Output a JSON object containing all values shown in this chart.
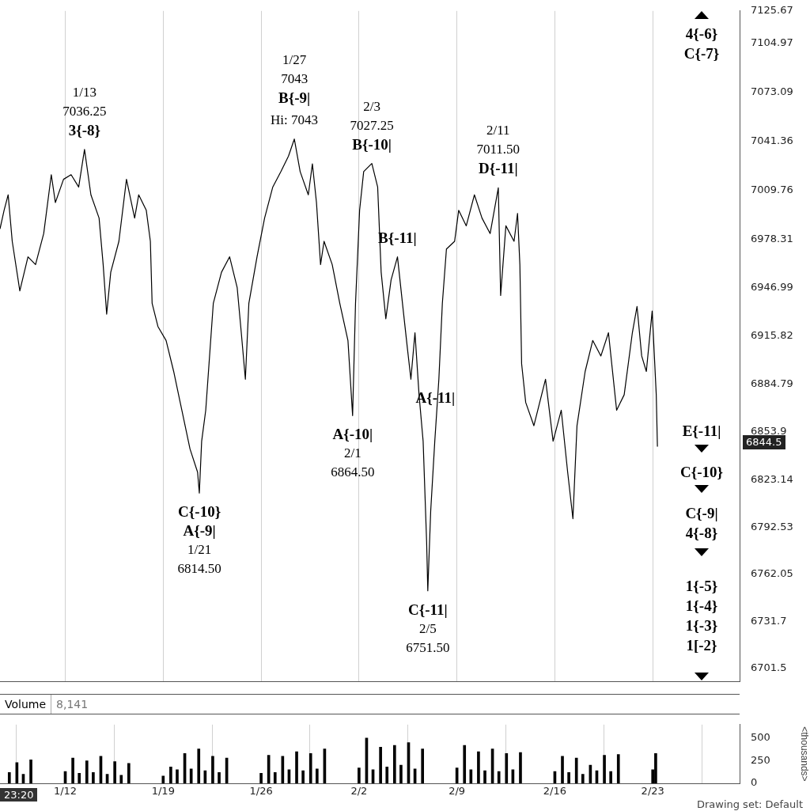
{
  "chart_data": [
    {
      "type": "line",
      "x": [
        "--01-07T08:00",
        "--01-07T15:00",
        "--01-07T22:00",
        "--01-08T05:00",
        "--01-08T18:00",
        "--01-09T08:00",
        "--01-09T21:00",
        "--01-10T11:00",
        "--01-11T00:00",
        "--01-11T07:00",
        "--01-11T21:00",
        "--01-12T10:00",
        "--01-12T23:00",
        "--01-13T09:00",
        "--01-13T20:00",
        "--01-14T10:00",
        "--01-14T17:00",
        "--01-14T23:00",
        "--01-15T06:00",
        "--01-15T20:00",
        "--01-16T09:00",
        "--01-16T23:00",
        "--01-17T06:00",
        "--01-17T19:00",
        "--01-18T02:00",
        "--01-18T05:00",
        "--01-18T15:00",
        "--01-19T05:00",
        "--01-19T18:00",
        "--01-20T08:00",
        "--01-20T22:00",
        "--01-21T11:00",
        "--01-21T14:00",
        "--01-21T18:00",
        "--01-22T01:00",
        "--01-22T14:00",
        "--01-23T04:00",
        "--01-23T18:00",
        "--01-24T07:00",
        "--01-24T14:00",
        "--01-24T21:00",
        "--01-25T03:00",
        "--01-25T17:00",
        "--01-26T06:00",
        "--01-26T20:00",
        "--01-27T10:00",
        "--01-27T23:00",
        "--01-28T09:00",
        "--01-28T19:00",
        "--01-29T09:00",
        "--01-29T16:00",
        "--01-29T23:00",
        "--01-30T06:00",
        "--01-30T12:00",
        "--01-31T02:00",
        "--01-31T15:00",
        "--02-01T05:00",
        "--02-01T13:00",
        "--02-01T18:00",
        "--02-02T01:00",
        "--02-02T08:00",
        "--02-02T22:00",
        "--02-03T08:00",
        "--02-03T14:00",
        "--02-03T22:00",
        "--02-04T07:00",
        "--02-04T18:00",
        "--02-05T04:00",
        "--02-05T11:00",
        "--02-05T17:00",
        "--02-06T00:00",
        "--02-06T07:00",
        "--02-06T14:00",
        "--02-06T20:00",
        "--02-06T22:00",
        "--02-07T03:00",
        "--02-07T10:00",
        "--02-07T17:00",
        "--02-07T23:00",
        "--02-08T06:00",
        "--02-08T20:00",
        "--02-09T03:00",
        "--02-09T16:00",
        "--02-10T06:00",
        "--02-10T19:00",
        "--02-11T09:00",
        "--02-11T23:00",
        "--02-12T03:00",
        "--02-12T12:00",
        "--02-13T02:00",
        "--02-13T08:00",
        "--02-13T12:00",
        "--02-13T15:00",
        "--02-13T22:00",
        "--02-14T12:00",
        "--02-15T08:00",
        "--02-15T21:00",
        "--02-16T11:00",
        "--02-16T22:00",
        "--02-17T07:00",
        "--02-17T14:00",
        "--02-18T04:00",
        "--02-18T17:00",
        "--02-19T07:00",
        "--02-19T20:00",
        "--02-20T10:00",
        "--02-20T23:00",
        "--02-21T13:00",
        "--02-21T21:00",
        "--02-22T05:00",
        "--02-22T13:00",
        "--02-22T23:00",
        "--02-23T06:00",
        "--02-23T08:00"
      ],
      "series": [
        {
          "color": "#000000",
          "values": [
            6985,
            6997,
            7007,
            6977,
            6945,
            6967,
            6962,
            6982,
            7020,
            7002,
            7017,
            7020,
            7012,
            7036.25,
            7007,
            6992,
            6962,
            6930,
            6957,
            6977,
            7017,
            6992,
            7007,
            6997,
            6977,
            6937,
            6922,
            6913,
            6893,
            6868,
            6843,
            6828,
            6814.5,
            6848,
            6868,
            6937,
            6957,
            6967,
            6947,
            6918,
            6888,
            6937,
            6967,
            6992,
            7012,
            7022,
            7032,
            7043,
            7022,
            7007,
            7027,
            7002,
            6962,
            6977,
            6962,
            6937,
            6913,
            6864.5,
            6937,
            6997,
            7022,
            7027.25,
            7012,
            6957,
            6927,
            6952,
            6967,
            6932,
            6908,
            6888,
            6918,
            6878,
            6848,
            6783,
            6751.5,
            6803,
            6848,
            6888,
            6937,
            6972,
            6977,
            6997,
            6987,
            7007,
            6992,
            6982,
            7011.5,
            6942,
            6987,
            6977,
            6995,
            6962,
            6898,
            6873,
            6858,
            6888,
            6848,
            6868,
            6828,
            6798,
            6858,
            6893,
            6913,
            6903,
            6918,
            6868,
            6878,
            6918,
            6935,
            6903,
            6893,
            6932,
            6878,
            6844.5
          ]
        }
      ],
      "xlim": [
        "--01-07T08:00",
        "--03-01T05:00"
      ],
      "xticks": [
        "--01-12",
        "--01-19",
        "--01-26",
        "--02-02",
        "--02-09",
        "--02-16",
        "--02-23"
      ],
      "ylim": [
        6693,
        7125.67
      ],
      "yticks": [
        6701.5,
        6731.7,
        6762.05,
        6792.53,
        6823.14,
        6853.9,
        6884.79,
        6915.82,
        6946.99,
        6978.31,
        7009.76,
        7041.36,
        7073.09,
        7104.97,
        7125.67
      ],
      "tick_labels": "y",
      "grid": "x",
      "marker": "none",
      "annotations": [
        {
          "text": "Hi: 7043",
          "x": "--01-28T09:00",
          "y": 7043
        },
        {
          "text": "1/13\n7036.25\n3{-8}",
          "x": "--01-13T09:00",
          "y": 7036.25
        },
        {
          "text": "1/27\n7043\nB{-9|",
          "x": "--01-28T09:00",
          "y": 7043
        },
        {
          "text": "2/3\n7027.25\nB{-10|",
          "x": "--02-02T22:00",
          "y": 7027.25
        },
        {
          "text": "2/11\n7011.50\nD{-11|",
          "x": "--02-11T23:00",
          "y": 7011.5
        },
        {
          "text": "B{-11|",
          "x": "--02-04T18:00",
          "y": 6967
        },
        {
          "text": "C{-10}\nA{-9|\n1/21\n6814.50",
          "x": "--01-21T14:00",
          "y": 6814.5
        },
        {
          "text": "A{-11|",
          "x": "--02-05T17:00",
          "y": 6888
        },
        {
          "text": "A{-10|\n2/1\n6864.50",
          "x": "--02-01T13:00",
          "y": 6864.5
        },
        {
          "text": "C{-11|\n2/5\n6751.50",
          "x": "--02-06T22:00",
          "y": 6751.5
        },
        "6844.5",
        "4{-6}\nC{-7}",
        "E{-11|",
        "C{-10}",
        "C{-9|\n4{-8}",
        "1{-5}\n1{-4}\n1{-3}\n1[-2}"
      ]
    },
    {
      "type": "bar",
      "title": "Volume",
      "subtitle": "8,141",
      "ylabel": "<thousands>",
      "x": [
        "--01-08T00:00",
        "--01-08T13:00",
        "--01-09T00:00",
        "--01-09T13:00",
        "--01-12T00:00",
        "--01-12T13:00",
        "--01-13T00:00",
        "--01-13T13:00",
        "--01-14T00:00",
        "--01-14T13:00",
        "--01-15T00:00",
        "--01-15T13:00",
        "--01-16T00:00",
        "--01-16T13:00",
        "--01-19T00:00",
        "--01-19T13:00",
        "--01-20T00:00",
        "--01-20T13:00",
        "--01-21T00:00",
        "--01-21T13:00",
        "--01-22T00:00",
        "--01-22T13:00",
        "--01-23T00:00",
        "--01-23T13:00",
        "--01-26T00:00",
        "--01-26T13:00",
        "--01-27T00:00",
        "--01-27T13:00",
        "--01-28T00:00",
        "--01-28T13:00",
        "--01-29T00:00",
        "--01-29T13:00",
        "--01-30T00:00",
        "--01-30T13:00",
        "--02-02T00:00",
        "--02-02T13:00",
        "--02-03T00:00",
        "--02-03T13:00",
        "--02-04T00:00",
        "--02-04T13:00",
        "--02-05T00:00",
        "--02-05T13:00",
        "--02-06T00:00",
        "--02-06T13:00",
        "--02-09T00:00",
        "--02-09T13:00",
        "--02-10T00:00",
        "--02-10T13:00",
        "--02-11T00:00",
        "--02-11T13:00",
        "--02-12T00:00",
        "--02-12T13:00",
        "--02-13T00:00",
        "--02-13T13:00",
        "--02-16T00:00",
        "--02-16T13:00",
        "--02-17T00:00",
        "--02-17T13:00",
        "--02-18T00:00",
        "--02-18T13:00",
        "--02-19T00:00",
        "--02-19T13:00",
        "--02-20T00:00",
        "--02-20T13:00",
        "--02-23T00:00",
        "--02-23T05:00"
      ],
      "series": [
        {
          "color": "#000000",
          "values": [
            120,
            230,
            100,
            260,
            130,
            280,
            110,
            250,
            120,
            300,
            100,
            240,
            90,
            220,
            80,
            180,
            150,
            330,
            160,
            380,
            140,
            300,
            120,
            280,
            110,
            310,
            120,
            300,
            150,
            350,
            140,
            330,
            160,
            380,
            170,
            500,
            150,
            400,
            180,
            420,
            200,
            450,
            160,
            380,
            170,
            420,
            150,
            350,
            140,
            380,
            130,
            330,
            150,
            340,
            130,
            300,
            120,
            280,
            100,
            200,
            140,
            310,
            130,
            320,
            150,
            330
          ]
        }
      ],
      "xlim": [
        "--01-07T08:00",
        "--03-01T05:00"
      ],
      "xticks": [
        {
          "value": "--01-12",
          "label": "1/12"
        },
        {
          "value": "--01-19",
          "label": "1/19"
        },
        {
          "value": "--01-26",
          "label": "1/26"
        },
        {
          "value": "--02-02",
          "label": "2/2"
        },
        {
          "value": "--02-09",
          "label": "2/9"
        },
        {
          "value": "--02-16",
          "label": "2/16"
        },
        {
          "value": "--02-23",
          "label": "2/23"
        }
      ],
      "ylim": [
        0,
        650
      ],
      "yticks": [
        0,
        250,
        500
      ],
      "grid": "x",
      "annotations": [
        "23:20",
        "Drawing set: Default"
      ]
    }
  ]
}
